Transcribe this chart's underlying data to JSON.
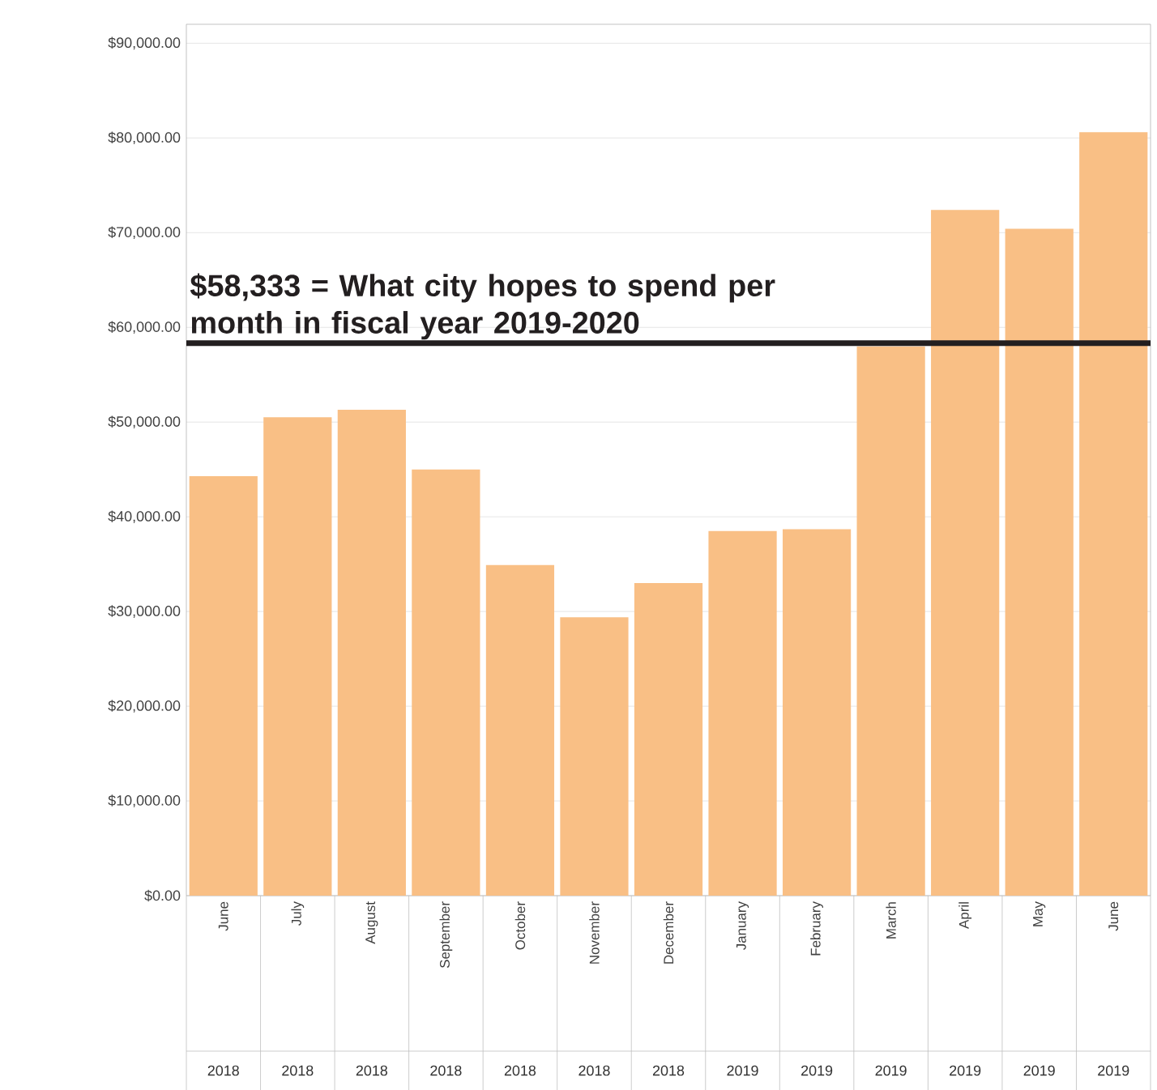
{
  "chart_data": {
    "type": "bar",
    "categories": [
      "June",
      "July",
      "August",
      "September",
      "October",
      "November",
      "December",
      "January",
      "February",
      "March",
      "April",
      "May",
      "June"
    ],
    "values": [
      44300,
      50500,
      51300,
      45000,
      34900,
      29400,
      33000,
      38500,
      38700,
      58000,
      72400,
      70400,
      80600
    ],
    "color": "#f9bf85",
    "ylim": [
      0,
      92000
    ],
    "yticks": [
      {
        "value": 0,
        "label": "$0.00"
      },
      {
        "value": 10000,
        "label": "$10,000.00"
      },
      {
        "value": 20000,
        "label": "$20,000.00"
      },
      {
        "value": 30000,
        "label": "$30,000.00"
      },
      {
        "value": 40000,
        "label": "$40,000.00"
      },
      {
        "value": 50000,
        "label": "$50,000.00"
      },
      {
        "value": 60000,
        "label": "$60,000.00"
      },
      {
        "value": 70000,
        "label": "$70,000.00"
      },
      {
        "value": 80000,
        "label": "$80,000.00"
      },
      {
        "value": 90000,
        "label": "$90,000.00"
      }
    ],
    "grid": "y",
    "ref_lines": [
      {
        "axis": "y",
        "value": 58333,
        "label": "$58,333 = What city hopes to spend per month in fiscal year 2019-2020",
        "color": "#231f20"
      }
    ],
    "annotations": [
      {
        "text": "2018"
      },
      {
        "text": "2018"
      },
      {
        "text": "2018"
      },
      {
        "text": "2018"
      },
      {
        "text": "2018"
      },
      {
        "text": "2018"
      },
      {
        "text": "2018"
      },
      {
        "text": "2019"
      },
      {
        "text": "2019"
      },
      {
        "text": "2019"
      },
      {
        "text": "2019"
      },
      {
        "text": "2019"
      },
      {
        "text": "2019"
      }
    ]
  }
}
